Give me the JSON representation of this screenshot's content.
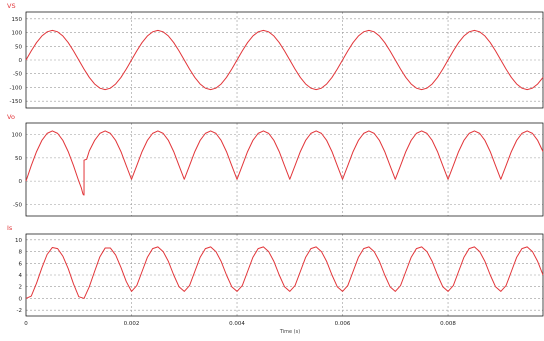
{
  "colors": {
    "trace": "#e2363a",
    "grid": "#9a9a9a",
    "frame": "#000000",
    "background": "#ffffff"
  },
  "x_axis": {
    "min": 0,
    "max": 0.0098,
    "tick_labels": [
      "0",
      "0.002",
      "0.004",
      "0.006",
      "0.008"
    ],
    "tick_values": [
      0,
      0.002,
      0.004,
      0.006,
      0.008
    ],
    "title": "Time (s)"
  },
  "chart_data": [
    {
      "type": "line",
      "title": "VS",
      "ylim": [
        -175,
        175
      ],
      "yticks": [
        -150,
        -100,
        -50,
        0,
        50,
        100,
        150
      ],
      "ytick_labels": [
        "-150",
        "-100",
        "-50",
        "0",
        "50",
        "100",
        "150"
      ],
      "grid": true,
      "series": [
        {
          "x": [
            0,
            0.0001,
            0.0002,
            0.0003,
            0.0004,
            0.0005,
            0.0006,
            0.0007,
            0.0008,
            0.0009,
            0.001,
            0.0011,
            0.0012,
            0.0013,
            0.0014,
            0.0015,
            0.0016,
            0.0017,
            0.0018,
            0.0019,
            0.002,
            0.0021,
            0.0022,
            0.0023,
            0.0024,
            0.0025,
            0.0026,
            0.0027,
            0.0028,
            0.0029,
            0.003,
            0.0031,
            0.0032,
            0.0033,
            0.0034,
            0.0035,
            0.0036,
            0.0037,
            0.0038,
            0.0039,
            0.004,
            0.0041,
            0.0042,
            0.0043,
            0.0044,
            0.0045,
            0.0046,
            0.0047,
            0.0048,
            0.0049,
            0.005,
            0.0051,
            0.0052,
            0.0053,
            0.0054,
            0.0055,
            0.0056,
            0.0057,
            0.0058,
            0.0059,
            0.006,
            0.0061,
            0.0062,
            0.0063,
            0.0064,
            0.0065,
            0.0066,
            0.0067,
            0.0068,
            0.0069,
            0.007,
            0.0071,
            0.0072,
            0.0073,
            0.0074,
            0.0075,
            0.0076,
            0.0077,
            0.0078,
            0.0079,
            0.008,
            0.0081,
            0.0082,
            0.0083,
            0.0084,
            0.0085,
            0.0086,
            0.0087,
            0.0088,
            0.0089,
            0.009,
            0.0091,
            0.0092,
            0.0093,
            0.0094,
            0.0095,
            0.0096,
            0.0097,
            0.0098
          ],
          "values": [
            0,
            33.4,
            63.5,
            87.4,
            102.7,
            108,
            102.7,
            87.4,
            63.5,
            33.4,
            0,
            -33.4,
            -63.5,
            -87.4,
            -102.7,
            -108,
            -102.7,
            -87.4,
            -63.5,
            -33.4,
            0,
            33.4,
            63.5,
            87.4,
            102.7,
            108,
            102.7,
            87.4,
            63.5,
            33.4,
            0,
            -33.4,
            -63.5,
            -87.4,
            -102.7,
            -108,
            -102.7,
            -87.4,
            -63.5,
            -33.4,
            0,
            33.4,
            63.5,
            87.4,
            102.7,
            108,
            102.7,
            87.4,
            63.5,
            33.4,
            0,
            -33.4,
            -63.5,
            -87.4,
            -102.7,
            -108,
            -102.7,
            -87.4,
            -63.5,
            -33.4,
            0,
            33.4,
            63.5,
            87.4,
            102.7,
            108,
            102.7,
            87.4,
            63.5,
            33.4,
            0,
            -33.4,
            -63.5,
            -87.4,
            -102.7,
            -108,
            -102.7,
            -87.4,
            -63.5,
            -33.4,
            0,
            33.4,
            63.5,
            87.4,
            102.7,
            108,
            102.7,
            87.4,
            63.5,
            33.4,
            0,
            -33.4,
            -63.5,
            -87.4,
            -102.7,
            -108,
            -102.7,
            -87.4,
            -63.5
          ]
        }
      ]
    },
    {
      "type": "line",
      "title": "Vo",
      "ylim": [
        -75,
        125
      ],
      "yticks": [
        -50,
        0,
        50,
        100
      ],
      "ytick_labels": [
        "-50",
        "0",
        "50",
        "100"
      ],
      "grid": true,
      "series": [
        {
          "x": [
            0,
            0.0001,
            0.0002,
            0.0003,
            0.0004,
            0.0005,
            0.0006,
            0.0007,
            0.0008,
            0.0009,
            0.001,
            0.00105,
            0.00108,
            0.0011,
            0.0011,
            0.00115,
            0.0012,
            0.0013,
            0.0014,
            0.0015,
            0.0016,
            0.0017,
            0.0018,
            0.0019,
            0.002,
            0.0021,
            0.0022,
            0.0023,
            0.0024,
            0.0025,
            0.0026,
            0.0027,
            0.0028,
            0.0029,
            0.003,
            0.0031,
            0.0032,
            0.0033,
            0.0034,
            0.0035,
            0.0036,
            0.0037,
            0.0038,
            0.0039,
            0.004,
            0.0041,
            0.0042,
            0.0043,
            0.0044,
            0.0045,
            0.0046,
            0.0047,
            0.0048,
            0.0049,
            0.005,
            0.0051,
            0.0052,
            0.0053,
            0.0054,
            0.0055,
            0.0056,
            0.0057,
            0.0058,
            0.0059,
            0.006,
            0.0061,
            0.0062,
            0.0063,
            0.0064,
            0.0065,
            0.0066,
            0.0067,
            0.0068,
            0.0069,
            0.007,
            0.0071,
            0.0072,
            0.0073,
            0.0074,
            0.0075,
            0.0076,
            0.0077,
            0.0078,
            0.0079,
            0.008,
            0.0081,
            0.0082,
            0.0083,
            0.0084,
            0.0085,
            0.0086,
            0.0087,
            0.0088,
            0.0089,
            0.009,
            0.0091,
            0.0092,
            0.0093,
            0.0094,
            0.0095,
            0.0096,
            0.0097,
            0.0098
          ],
          "values": [
            0,
            33.4,
            63.5,
            87.4,
            102.7,
            108,
            102.7,
            87.4,
            63.5,
            33.4,
            0,
            -15,
            -28,
            -30,
            45,
            47,
            65,
            87.4,
            102.7,
            108,
            102.7,
            87.4,
            63.5,
            33.4,
            4,
            33.4,
            63.5,
            87.4,
            102.7,
            108,
            102.7,
            87.4,
            63.5,
            33.4,
            4,
            33.4,
            63.5,
            87.4,
            102.7,
            108,
            102.7,
            87.4,
            63.5,
            33.4,
            4,
            33.4,
            63.5,
            87.4,
            102.7,
            108,
            102.7,
            87.4,
            63.5,
            33.4,
            4,
            33.4,
            63.5,
            87.4,
            102.7,
            108,
            102.7,
            87.4,
            63.5,
            33.4,
            4,
            33.4,
            63.5,
            87.4,
            102.7,
            108,
            102.7,
            87.4,
            63.5,
            33.4,
            4,
            33.4,
            63.5,
            87.4,
            102.7,
            108,
            102.7,
            87.4,
            63.5,
            33.4,
            4,
            33.4,
            63.5,
            87.4,
            102.7,
            108,
            102.7,
            87.4,
            63.5,
            33.4,
            4,
            33.4,
            63.5,
            87.4,
            102.7,
            108,
            102.7,
            87.4,
            63.5
          ]
        }
      ]
    },
    {
      "type": "line",
      "title": "Is",
      "ylim": [
        -3,
        11
      ],
      "yticks": [
        -2,
        0,
        2,
        4,
        6,
        8,
        10
      ],
      "ytick_labels": [
        "-2",
        "0",
        "2",
        "4",
        "6",
        "8",
        "10"
      ],
      "grid": true,
      "series": [
        {
          "x": [
            0,
            0.0001,
            0.0002,
            0.0003,
            0.0004,
            0.0005,
            0.0006,
            0.0007,
            0.0008,
            0.0009,
            0.001,
            0.0011,
            0.0012,
            0.0013,
            0.0014,
            0.0015,
            0.0016,
            0.0017,
            0.0018,
            0.0019,
            0.002,
            0.0021,
            0.0022,
            0.0023,
            0.0024,
            0.0025,
            0.0026,
            0.0027,
            0.0028,
            0.0029,
            0.003,
            0.0031,
            0.0032,
            0.0033,
            0.0034,
            0.0035,
            0.0036,
            0.0037,
            0.0038,
            0.0039,
            0.004,
            0.0041,
            0.0042,
            0.0043,
            0.0044,
            0.0045,
            0.0046,
            0.0047,
            0.0048,
            0.0049,
            0.005,
            0.0051,
            0.0052,
            0.0053,
            0.0054,
            0.0055,
            0.0056,
            0.0057,
            0.0058,
            0.0059,
            0.006,
            0.0061,
            0.0062,
            0.0063,
            0.0064,
            0.0065,
            0.0066,
            0.0067,
            0.0068,
            0.0069,
            0.007,
            0.0071,
            0.0072,
            0.0073,
            0.0074,
            0.0075,
            0.0076,
            0.0077,
            0.0078,
            0.0079,
            0.008,
            0.0081,
            0.0082,
            0.0083,
            0.0084,
            0.0085,
            0.0086,
            0.0087,
            0.0088,
            0.0089,
            0.009,
            0.0091,
            0.0092,
            0.0093,
            0.0094,
            0.0095,
            0.0096,
            0.0097,
            0.0098
          ],
          "values": [
            0,
            0.4,
            2.6,
            5.2,
            7.5,
            8.7,
            8.5,
            7.2,
            5.1,
            2.5,
            0.3,
            0,
            2.0,
            4.6,
            7.1,
            8.6,
            8.6,
            7.4,
            5.3,
            2.9,
            1.2,
            2.2,
            4.6,
            7.0,
            8.5,
            8.8,
            8.0,
            6.3,
            4.0,
            2.0,
            1.2,
            2.2,
            4.6,
            7.0,
            8.5,
            8.8,
            8.0,
            6.3,
            4.0,
            2.0,
            1.2,
            2.2,
            4.6,
            7.0,
            8.5,
            8.8,
            8.0,
            6.3,
            4.0,
            2.0,
            1.2,
            2.2,
            4.6,
            7.0,
            8.5,
            8.8,
            8.0,
            6.3,
            4.0,
            2.0,
            1.2,
            2.2,
            4.6,
            7.0,
            8.5,
            8.8,
            8.0,
            6.3,
            4.0,
            2.0,
            1.2,
            2.2,
            4.6,
            7.0,
            8.5,
            8.8,
            8.0,
            6.3,
            4.0,
            2.0,
            1.2,
            2.2,
            4.6,
            7.0,
            8.5,
            8.8,
            8.0,
            6.3,
            4.0,
            2.0,
            1.2,
            2.2,
            4.6,
            7.0,
            8.5,
            8.8,
            8.0,
            6.3,
            4.0
          ]
        }
      ]
    }
  ]
}
